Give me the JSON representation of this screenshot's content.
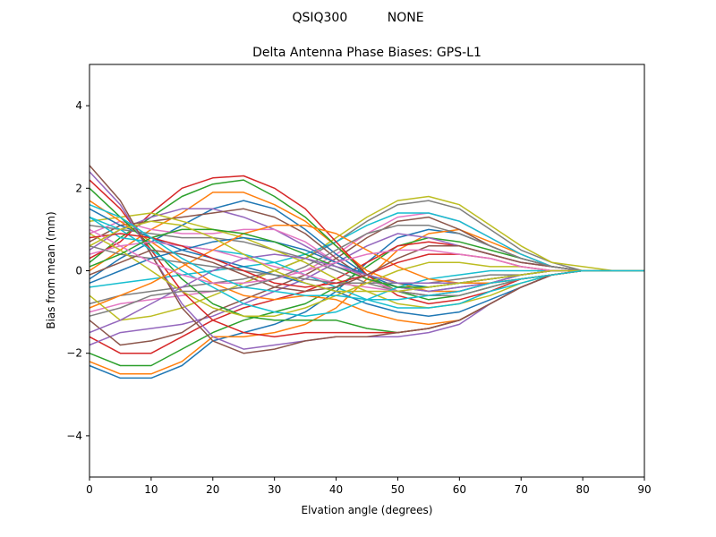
{
  "figure": {
    "suptitle": "QSIQ300          NONE"
  },
  "chart_data": {
    "type": "line",
    "title": "Delta Antenna Phase Biases: GPS-L1",
    "xlabel": "Elvation angle (degrees)",
    "ylabel": "Bias from mean (mm)",
    "xlim": [
      0,
      90
    ],
    "ylim": [
      -5,
      5
    ],
    "xticks": [
      0,
      10,
      20,
      30,
      40,
      50,
      60,
      70,
      80,
      90
    ],
    "yticks": [
      -4,
      -2,
      0,
      2,
      4
    ],
    "ytick_labels": [
      "−4",
      "−2",
      "0",
      "2",
      "4"
    ],
    "grid": false,
    "legend": "none",
    "palette": [
      "#1f77b4",
      "#ff7f0e",
      "#2ca02c",
      "#d62728",
      "#9467bd",
      "#8c564b",
      "#e377c2",
      "#7f7f7f",
      "#bcbd22",
      "#17becf"
    ],
    "x": [
      0,
      5,
      10,
      15,
      20,
      25,
      30,
      35,
      40,
      45,
      50,
      55,
      60,
      65,
      70,
      75,
      80,
      85,
      90
    ],
    "series": [
      {
        "values": [
          -2.3,
          -2.6,
          -2.6,
          -2.3,
          -1.7,
          -1.5,
          -1.3,
          -1.0,
          -0.5,
          0.2,
          0.8,
          1.0,
          0.9,
          0.6,
          0.3,
          0.1,
          0.0,
          0.0,
          0.0
        ]
      },
      {
        "values": [
          -2.2,
          -2.5,
          -2.5,
          -2.2,
          -1.6,
          -1.6,
          -1.5,
          -1.3,
          -0.9,
          -0.2,
          0.5,
          0.9,
          1.0,
          0.7,
          0.4,
          0.1,
          0.0,
          0.0,
          0.0
        ]
      },
      {
        "values": [
          -2.0,
          -2.3,
          -2.3,
          -1.9,
          -1.5,
          -1.2,
          -1.0,
          -0.8,
          -0.4,
          0.1,
          0.6,
          0.8,
          0.7,
          0.5,
          0.3,
          0.1,
          0.0,
          0.0,
          0.0
        ]
      },
      {
        "values": [
          -1.6,
          -2.0,
          -2.0,
          -1.6,
          -1.2,
          -0.9,
          -0.7,
          -0.5,
          -0.2,
          0.2,
          0.6,
          0.7,
          0.6,
          0.4,
          0.2,
          0.1,
          0.0,
          0.0,
          0.0
        ]
      },
      {
        "values": [
          -1.8,
          -1.5,
          -1.4,
          -1.3,
          -1.1,
          -0.8,
          -0.5,
          -0.2,
          0.2,
          0.6,
          0.9,
          0.8,
          0.6,
          0.4,
          0.2,
          0.1,
          0.0,
          0.0,
          0.0
        ]
      },
      {
        "values": [
          -1.2,
          -1.8,
          -1.7,
          -1.5,
          -1.0,
          -0.7,
          -0.4,
          -0.1,
          0.3,
          0.8,
          1.2,
          1.3,
          1.0,
          0.6,
          0.3,
          0.1,
          0.0,
          0.0,
          0.0
        ]
      },
      {
        "values": [
          -1.0,
          -0.8,
          -0.7,
          -0.6,
          -0.5,
          -0.4,
          -0.2,
          0.0,
          0.4,
          0.9,
          1.3,
          1.4,
          1.2,
          0.8,
          0.4,
          0.1,
          0.0,
          0.0,
          0.0
        ]
      },
      {
        "values": [
          -0.8,
          -0.6,
          -0.5,
          -0.4,
          -0.3,
          -0.2,
          0.0,
          0.3,
          0.7,
          1.2,
          1.6,
          1.7,
          1.5,
          1.0,
          0.5,
          0.2,
          0.0,
          0.0,
          0.0
        ]
      },
      {
        "values": [
          -0.6,
          -1.2,
          -1.1,
          -0.9,
          -0.6,
          -0.3,
          0.0,
          0.3,
          0.8,
          1.3,
          1.7,
          1.8,
          1.6,
          1.1,
          0.6,
          0.2,
          0.1,
          0.0,
          0.0
        ]
      },
      {
        "values": [
          -0.4,
          -0.3,
          -0.2,
          -0.1,
          0.0,
          0.1,
          0.2,
          0.4,
          0.7,
          1.1,
          1.4,
          1.4,
          1.2,
          0.8,
          0.4,
          0.1,
          0.0,
          0.0,
          0.0
        ]
      },
      {
        "values": [
          -0.2,
          0.3,
          0.7,
          1.1,
          1.5,
          1.7,
          1.5,
          1.0,
          0.4,
          -0.1,
          -0.4,
          -0.5,
          -0.4,
          -0.3,
          -0.1,
          0.0,
          0.0,
          0.0,
          0.0
        ]
      },
      {
        "values": [
          0.0,
          0.5,
          1.0,
          1.4,
          1.9,
          1.9,
          1.6,
          1.2,
          0.6,
          0.0,
          -0.3,
          -0.5,
          -0.5,
          -0.3,
          -0.2,
          -0.1,
          0.0,
          0.0,
          0.0
        ]
      },
      {
        "values": [
          0.2,
          0.8,
          1.3,
          1.8,
          2.1,
          2.2,
          1.8,
          1.3,
          0.6,
          -0.1,
          -0.5,
          -0.7,
          -0.6,
          -0.4,
          -0.2,
          -0.1,
          0.0,
          0.0,
          0.0
        ]
      },
      {
        "values": [
          0.3,
          0.7,
          1.4,
          2.0,
          2.25,
          2.3,
          2.0,
          1.5,
          0.7,
          -0.1,
          -0.6,
          -0.8,
          -0.7,
          -0.5,
          -0.2,
          -0.1,
          0.0,
          0.0,
          0.0
        ]
      },
      {
        "values": [
          0.5,
          1.0,
          1.3,
          1.5,
          1.5,
          1.3,
          1.0,
          0.6,
          0.2,
          -0.2,
          -0.4,
          -0.5,
          -0.4,
          -0.3,
          -0.1,
          0.0,
          0.0,
          0.0,
          0.0
        ]
      },
      {
        "values": [
          0.7,
          1.1,
          1.2,
          1.3,
          1.4,
          1.5,
          1.3,
          0.9,
          0.3,
          -0.2,
          -0.5,
          -0.6,
          -0.5,
          -0.3,
          -0.2,
          -0.1,
          0.0,
          0.0,
          0.0
        ]
      },
      {
        "values": [
          0.9,
          1.2,
          1.0,
          0.9,
          0.9,
          1.0,
          1.0,
          0.7,
          0.2,
          -0.2,
          -0.5,
          -0.6,
          -0.5,
          -0.3,
          -0.2,
          -0.1,
          0.0,
          0.0,
          0.0
        ]
      },
      {
        "values": [
          1.1,
          1.0,
          0.9,
          0.8,
          0.8,
          0.7,
          0.5,
          0.3,
          0.0,
          -0.3,
          -0.5,
          -0.6,
          -0.6,
          -0.4,
          -0.2,
          -0.1,
          0.0,
          0.0,
          0.0
        ]
      },
      {
        "values": [
          1.2,
          1.3,
          1.4,
          1.2,
          1.0,
          0.8,
          0.5,
          0.2,
          -0.2,
          -0.5,
          -0.8,
          -0.9,
          -0.8,
          -0.6,
          -0.3,
          -0.1,
          0.0,
          0.0,
          0.0
        ]
      },
      {
        "values": [
          1.3,
          0.8,
          0.7,
          0.6,
          0.5,
          0.4,
          0.2,
          -0.1,
          -0.4,
          -0.7,
          -0.9,
          -0.9,
          -0.8,
          -0.5,
          -0.3,
          -0.1,
          0.0,
          0.0,
          0.0
        ]
      },
      {
        "values": [
          1.5,
          1.1,
          0.8,
          0.5,
          0.3,
          0.1,
          -0.1,
          -0.3,
          -0.5,
          -0.8,
          -1.0,
          -1.1,
          -1.0,
          -0.7,
          -0.4,
          -0.1,
          0.0,
          0.0,
          0.0
        ]
      },
      {
        "values": [
          1.7,
          1.2,
          0.7,
          0.2,
          -0.3,
          -0.6,
          -0.7,
          -0.6,
          -0.7,
          -1.0,
          -1.2,
          -1.3,
          -1.2,
          -0.8,
          -0.4,
          -0.1,
          0.0,
          0.0,
          0.0
        ]
      },
      {
        "values": [
          2.0,
          1.3,
          0.6,
          -0.2,
          -0.8,
          -1.1,
          -1.2,
          -1.2,
          -1.2,
          -1.4,
          -1.5,
          -1.4,
          -1.2,
          -0.8,
          -0.4,
          -0.1,
          0.0,
          0.0,
          0.0
        ]
      },
      {
        "values": [
          2.2,
          1.5,
          0.5,
          -0.5,
          -1.2,
          -1.5,
          -1.6,
          -1.5,
          -1.5,
          -1.5,
          -1.5,
          -1.4,
          -1.2,
          -0.8,
          -0.4,
          -0.1,
          0.0,
          0.0,
          0.0
        ]
      },
      {
        "values": [
          2.4,
          1.6,
          0.4,
          -0.8,
          -1.6,
          -1.9,
          -1.8,
          -1.7,
          -1.6,
          -1.6,
          -1.6,
          -1.5,
          -1.3,
          -0.8,
          -0.4,
          -0.1,
          0.0,
          0.0,
          0.0
        ]
      },
      {
        "values": [
          2.55,
          1.7,
          0.4,
          -0.9,
          -1.7,
          -2.0,
          -1.9,
          -1.7,
          -1.6,
          -1.6,
          -1.5,
          -1.4,
          -1.2,
          -0.8,
          -0.4,
          -0.1,
          0.0,
          0.0,
          0.0
        ]
      },
      {
        "values": [
          0.4,
          0.6,
          0.7,
          0.6,
          0.5,
          0.3,
          0.1,
          -0.1,
          -0.3,
          -0.4,
          -0.5,
          -0.4,
          -0.3,
          -0.2,
          -0.1,
          0.0,
          0.0,
          0.0,
          0.0
        ]
      },
      {
        "values": [
          0.6,
          0.4,
          0.3,
          0.2,
          0.1,
          0.0,
          -0.1,
          -0.2,
          -0.3,
          -0.3,
          -0.3,
          -0.3,
          -0.2,
          -0.1,
          -0.1,
          0.0,
          0.0,
          0.0,
          0.0
        ]
      },
      {
        "values": [
          0.9,
          0.5,
          0.0,
          -0.5,
          -0.9,
          -1.1,
          -1.1,
          -0.9,
          -0.6,
          -0.3,
          0.0,
          0.2,
          0.2,
          0.1,
          0.1,
          0.0,
          0.0,
          0.0,
          0.0
        ]
      },
      {
        "values": [
          1.3,
          1.0,
          0.5,
          0.0,
          -0.4,
          -0.8,
          -1.0,
          -1.1,
          -1.0,
          -0.7,
          -0.4,
          -0.2,
          -0.1,
          0.0,
          0.0,
          0.0,
          0.0,
          0.0,
          0.0
        ]
      },
      {
        "values": [
          -0.3,
          0.0,
          0.3,
          0.5,
          0.7,
          0.8,
          0.7,
          0.5,
          0.2,
          -0.1,
          -0.3,
          -0.4,
          -0.3,
          -0.2,
          -0.1,
          0.0,
          0.0,
          0.0,
          0.0
        ]
      },
      {
        "values": [
          -0.9,
          -0.6,
          -0.3,
          0.1,
          0.5,
          0.9,
          1.1,
          1.1,
          0.9,
          0.5,
          0.1,
          -0.2,
          -0.3,
          -0.3,
          -0.2,
          -0.1,
          0.0,
          0.0,
          0.0
        ]
      },
      {
        "values": [
          0.1,
          0.4,
          0.8,
          1.0,
          1.0,
          0.9,
          0.7,
          0.4,
          0.1,
          -0.2,
          -0.4,
          -0.4,
          -0.3,
          -0.2,
          -0.1,
          0.0,
          0.0,
          0.0,
          0.0
        ]
      },
      {
        "values": [
          0.8,
          0.9,
          0.8,
          0.6,
          0.3,
          0.0,
          -0.3,
          -0.4,
          -0.3,
          -0.1,
          0.2,
          0.4,
          0.4,
          0.3,
          0.1,
          0.0,
          0.0,
          0.0,
          0.0
        ]
      },
      {
        "values": [
          -1.5,
          -1.2,
          -0.8,
          -0.4,
          0.0,
          0.3,
          0.4,
          0.3,
          0.1,
          -0.1,
          -0.3,
          -0.3,
          -0.3,
          -0.2,
          -0.1,
          0.0,
          0.0,
          0.0,
          0.0
        ]
      },
      {
        "values": [
          -0.1,
          0.2,
          0.5,
          0.4,
          0.2,
          -0.1,
          -0.4,
          -0.5,
          -0.4,
          -0.1,
          0.3,
          0.6,
          0.6,
          0.4,
          0.2,
          0.1,
          0.0,
          0.0,
          0.0
        ]
      },
      {
        "values": [
          1.0,
          0.6,
          0.2,
          -0.1,
          -0.3,
          -0.3,
          -0.2,
          0.0,
          0.2,
          0.4,
          0.5,
          0.5,
          0.4,
          0.3,
          0.1,
          0.0,
          0.0,
          0.0,
          0.0
        ]
      },
      {
        "values": [
          -1.1,
          -0.9,
          -0.6,
          -0.5,
          -0.5,
          -0.4,
          -0.2,
          0.1,
          0.5,
          0.9,
          1.1,
          1.1,
          0.9,
          0.6,
          0.3,
          0.1,
          0.0,
          0.0,
          0.0
        ]
      },
      {
        "values": [
          0.6,
          1.0,
          1.2,
          1.1,
          0.8,
          0.4,
          0.0,
          -0.3,
          -0.5,
          -0.5,
          -0.5,
          -0.4,
          -0.3,
          -0.2,
          -0.1,
          0.0,
          0.0,
          0.0,
          0.0
        ]
      },
      {
        "values": [
          1.6,
          1.3,
          0.8,
          0.3,
          -0.1,
          -0.4,
          -0.5,
          -0.6,
          -0.6,
          -0.7,
          -0.7,
          -0.6,
          -0.5,
          -0.3,
          -0.2,
          -0.1,
          0.0,
          0.0,
          0.0
        ]
      }
    ]
  }
}
